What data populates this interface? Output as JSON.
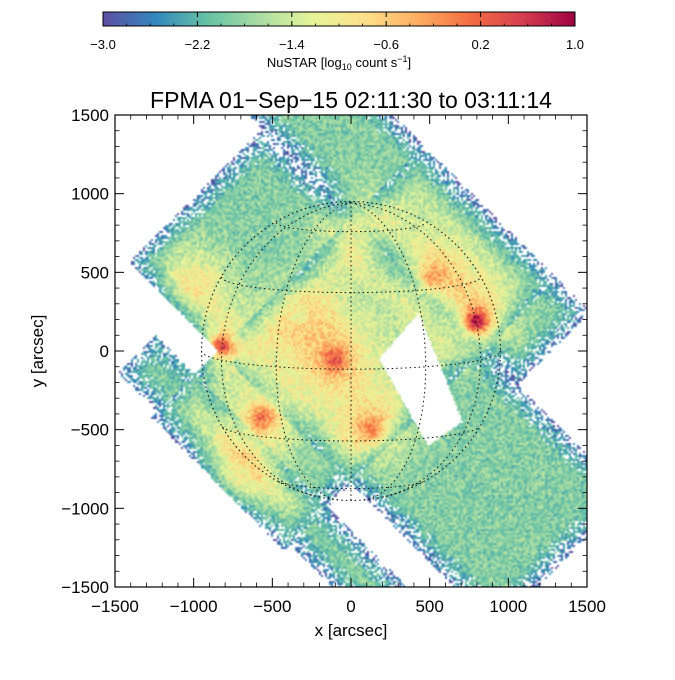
{
  "chart_data": {
    "type": "heatmap",
    "title": "FPMA 01−Sep−15 02:11:30 to 03:11:14",
    "xlabel": "x [arcsec]",
    "ylabel": "y [arcsec]",
    "xlim": [
      -1500,
      1500
    ],
    "ylim": [
      -1500,
      1500
    ],
    "x_ticks": [
      -1500,
      -1000,
      -500,
      0,
      500,
      1000,
      1500
    ],
    "y_ticks": [
      -1500,
      -1000,
      -500,
      0,
      500,
      1000,
      1500
    ],
    "x_tick_labels": [
      "−1500",
      "−1000",
      "−500",
      "0",
      "500",
      "1000",
      "1500"
    ],
    "y_tick_labels": [
      "−1500",
      "−1000",
      "−500",
      "0",
      "500",
      "1000",
      "1500"
    ],
    "colorbar": {
      "label_main": "NuSTAR [log",
      "label_sub": "10",
      "label_end": " count s",
      "label_sup": "−1",
      "label_close": "]",
      "range": [
        -3.0,
        1.0
      ],
      "ticks": [
        -3.0,
        -2.2,
        -1.4,
        -0.6,
        0.2,
        1.0
      ],
      "tick_labels": [
        "−3.0",
        "−2.2",
        "−1.4",
        "−0.6",
        "0.2",
        "1.0"
      ],
      "colormap": [
        "#5e4fa2",
        "#3288bd",
        "#66c2a5",
        "#abdda4",
        "#e6f598",
        "#fee08b",
        "#fdae61",
        "#f46d43",
        "#d53e4f",
        "#9e0142"
      ]
    },
    "solar_disk": {
      "radius_arcsec": 950,
      "grid": "dotted"
    },
    "mosaic_rotation_deg": 45,
    "mosaic_columns": [
      {
        "u_range": [
          -600,
          600
        ],
        "v_range": [
          -1900,
          1400
        ]
      },
      {
        "u_range": [
          -1200,
          1200
        ],
        "v_range": [
          -600,
          600
        ]
      },
      {
        "u_range": [
          -1150,
          -800
        ],
        "v_range": [
          -1300,
          950
        ]
      },
      {
        "u_range": [
          600,
          1250
        ],
        "v_range": [
          -900,
          1600
        ]
      }
    ],
    "gap_region": [
      [
        180,
        -50
      ],
      [
        430,
        240
      ],
      [
        710,
        -450
      ],
      [
        490,
        -600
      ]
    ],
    "sources": [
      {
        "x": 800,
        "y": 190,
        "peak": 0.7
      },
      {
        "x": -820,
        "y": 30,
        "peak": 0.4
      },
      {
        "x": -100,
        "y": -60,
        "peak": 0.2
      },
      {
        "x": -560,
        "y": -420,
        "peak": 0.0
      },
      {
        "x": 130,
        "y": -490,
        "peak": -0.1
      },
      {
        "x": 530,
        "y": 470,
        "peak": -0.3
      },
      {
        "x": -1000,
        "y": 420,
        "peak": -1.0
      },
      {
        "x": -700,
        "y": -780,
        "peak": -1.1
      },
      {
        "x": -330,
        "y": 220,
        "peak": -1.2
      },
      {
        "x": 30,
        "y": 780,
        "peak": -1.3
      }
    ]
  }
}
